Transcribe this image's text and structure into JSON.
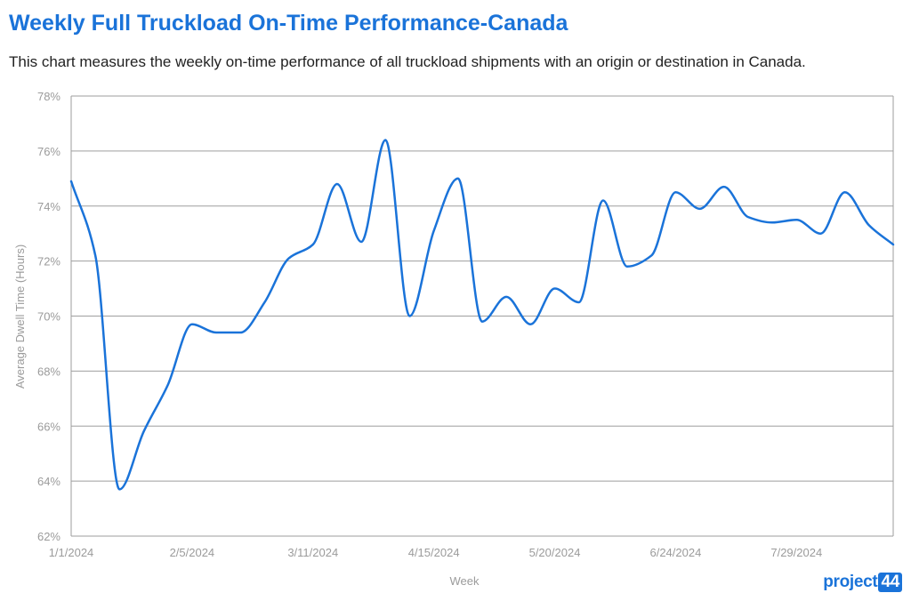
{
  "header": {
    "title": "Weekly Full Truckload On-Time Performance-Canada",
    "subtitle": "This chart measures the weekly on-time performance of all truckload shipments with an origin or destination in Canada."
  },
  "colors": {
    "title": "#1a73d9",
    "line": "#1a73d9",
    "grid": "#9e9e9e",
    "tick": "#9b9b9b"
  },
  "logo": {
    "text": "project",
    "number": "44"
  },
  "chart_data": {
    "type": "line",
    "title": "Weekly Full Truckload On-Time Performance-Canada",
    "xlabel": "Week",
    "ylabel": "Average Dwell Time (Hours)",
    "ylim": [
      62,
      78
    ],
    "y_ticks": [
      62,
      64,
      66,
      68,
      70,
      72,
      74,
      76,
      78
    ],
    "y_tick_labels": [
      "62%",
      "64%",
      "66%",
      "68%",
      "70%",
      "72%",
      "74%",
      "76%",
      "78%"
    ],
    "x_tick_labels": [
      "1/1/2024",
      "2/5/2024",
      "3/11/2024",
      "4/15/2024",
      "5/20/2024",
      "6/24/2024",
      "7/29/2024"
    ],
    "x_tick_week_index": [
      0,
      5,
      10,
      15,
      20,
      25,
      30
    ],
    "grid": true,
    "legend": "none",
    "series": [
      {
        "x": [
          "1/1/2024",
          "1/8/2024",
          "1/15/2024",
          "1/22/2024",
          "1/29/2024",
          "2/5/2024",
          "2/12/2024",
          "2/19/2024",
          "2/26/2024",
          "3/4/2024",
          "3/11/2024",
          "3/18/2024",
          "3/25/2024",
          "4/1/2024",
          "4/8/2024",
          "4/15/2024",
          "4/22/2024",
          "4/29/2024",
          "5/6/2024",
          "5/13/2024",
          "5/20/2024",
          "5/27/2024",
          "6/3/2024",
          "6/10/2024",
          "6/17/2024",
          "6/24/2024",
          "7/1/2024",
          "7/8/2024",
          "7/15/2024",
          "7/22/2024",
          "7/29/2024",
          "8/5/2024",
          "8/12/2024",
          "8/19/2024",
          "8/26/2024"
        ],
        "values": [
          74.9,
          72.2,
          63.7,
          65.8,
          67.5,
          69.7,
          69.4,
          69.4,
          70.5,
          72.1,
          72.6,
          74.8,
          72.7,
          76.4,
          70.0,
          73.1,
          75.0,
          69.8,
          70.7,
          69.7,
          71.0,
          70.5,
          74.2,
          71.8,
          72.2,
          74.5,
          73.9,
          74.7,
          73.6,
          73.4,
          73.5,
          73.0,
          74.5,
          73.3,
          72.6
        ]
      }
    ]
  }
}
